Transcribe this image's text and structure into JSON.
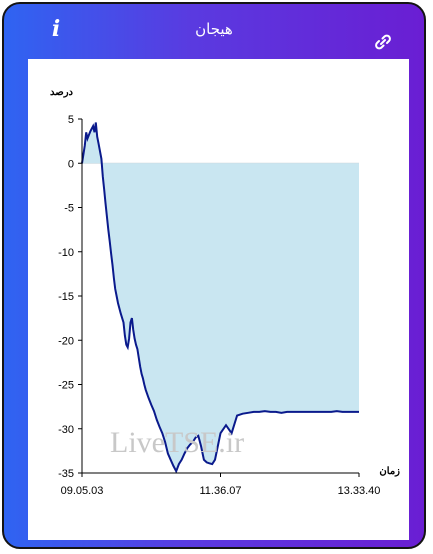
{
  "header": {
    "title": "هیجان",
    "info_glyph": "i",
    "info_icon": "info-icon",
    "link_icon": "link-icon"
  },
  "chart_data": {
    "type": "area",
    "title": "",
    "ylabel": "درصد",
    "xlabel": "زمان",
    "ylim": [
      -35,
      5
    ],
    "yticks": [
      5,
      0,
      -5,
      -10,
      -15,
      -20,
      -25,
      -30,
      -35
    ],
    "xtick_labels": [
      "09.05.03",
      "11.36.07",
      "13.33.40"
    ],
    "xtick_positions": [
      0,
      0.5,
      1
    ],
    "watermark": "LiveTSE.ir",
    "colors": {
      "line": "#0a1a8c",
      "fill": "#c9e6f1"
    },
    "series": [
      {
        "x": [
          0,
          0.01,
          0.015,
          0.02,
          0.03,
          0.04,
          0.045,
          0.05,
          0.055,
          0.06,
          0.07,
          0.075,
          0.08,
          0.085,
          0.09,
          0.095,
          0.1,
          0.105,
          0.11,
          0.115,
          0.12,
          0.125,
          0.13,
          0.14,
          0.15,
          0.155,
          0.16,
          0.165,
          0.17,
          0.175,
          0.18,
          0.185,
          0.19,
          0.195,
          0.2,
          0.205,
          0.21,
          0.215,
          0.22,
          0.225,
          0.23,
          0.24,
          0.25,
          0.26,
          0.27,
          0.28,
          0.29,
          0.3,
          0.31,
          0.32,
          0.33,
          0.34,
          0.35,
          0.36,
          0.37,
          0.38,
          0.39,
          0.4,
          0.41,
          0.42,
          0.43,
          0.44,
          0.45,
          0.46,
          0.47,
          0.48,
          0.5,
          0.52,
          0.54,
          0.56,
          0.58,
          0.6,
          0.62,
          0.64,
          0.66,
          0.68,
          0.7,
          0.72,
          0.74,
          0.75,
          0.76,
          0.78,
          0.8,
          0.82,
          0.84,
          0.86,
          0.88,
          0.9,
          0.92,
          0.94,
          0.96,
          0.98,
          1.0
        ],
        "y": [
          0,
          2,
          3.5,
          2.8,
          3.6,
          4.2,
          3.5,
          4.6,
          3.0,
          2.2,
          0.5,
          -1.5,
          -3.0,
          -4.5,
          -6.0,
          -7.5,
          -8.8,
          -10.2,
          -11.5,
          -13,
          -14.2,
          -15,
          -15.8,
          -17,
          -18,
          -19.5,
          -20.5,
          -20.8,
          -19.8,
          -18.0,
          -17.5,
          -18.8,
          -19.8,
          -20.5,
          -21,
          -22,
          -23,
          -23.8,
          -24.3,
          -25,
          -25.6,
          -26.5,
          -27.3,
          -28.0,
          -29.0,
          -29.8,
          -30.5,
          -31.5,
          -32.8,
          -33.5,
          -34.2,
          -34.8,
          -34.0,
          -33.5,
          -32.8,
          -32.2,
          -31.8,
          -31.5,
          -31.0,
          -30.8,
          -32.0,
          -33.5,
          -33.8,
          -33.9,
          -34.0,
          -33.5,
          -30.5,
          -29.6,
          -30.5,
          -28.5,
          -28.3,
          -28.2,
          -28.1,
          -28.1,
          -28.0,
          -28.1,
          -28.1,
          -28.2,
          -28.1,
          -28.1,
          -28.1,
          -28.1,
          -28.1,
          -28.1,
          -28.1,
          -28.1,
          -28.1,
          -28.1,
          -28.0,
          -28.1,
          -28.1,
          -28.1,
          -28.1
        ]
      }
    ]
  }
}
